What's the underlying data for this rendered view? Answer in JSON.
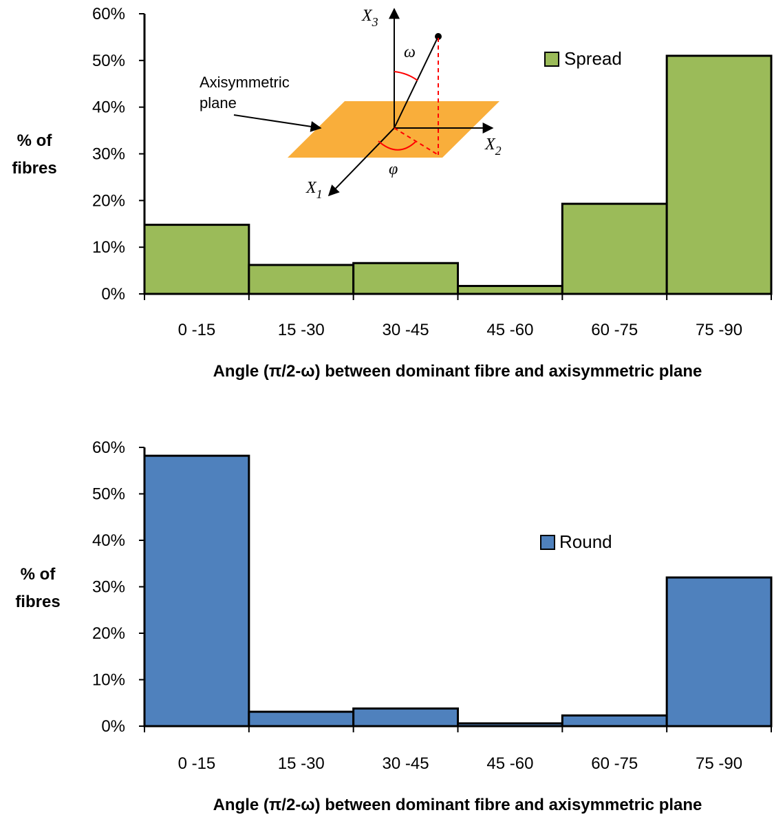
{
  "colors": {
    "spread": "#9bbb59",
    "round": "#4f81bd",
    "plane": "#f9ae3b",
    "angle_marks": "#ff0000"
  },
  "chart_data": [
    {
      "type": "bar",
      "categories": [
        "0 -15",
        "15 -30",
        "30 -45",
        "45 -60",
        "60 -75",
        "75 -90"
      ],
      "series": [
        {
          "name": "Spread",
          "values": [
            14.8,
            6.2,
            6.6,
            1.7,
            19.3,
            51.0
          ]
        }
      ],
      "ylim": [
        0,
        60
      ],
      "yticks": [
        "0%",
        "10%",
        "20%",
        "30%",
        "40%",
        "50%",
        "60%"
      ],
      "ylabel_lines": [
        "% of",
        "fibres"
      ],
      "xlabel": "Angle (π/2-ω) between dominant fibre and axisymmetric plane",
      "legend": "top-right",
      "grid": false,
      "inset_diagram": {
        "labels": {
          "x1": "X",
          "x1_sub": "1",
          "x2": "X",
          "x2_sub": "2",
          "x3": "X",
          "x3_sub": "3",
          "omega": "ω",
          "phi": "φ",
          "plane_line1": "Axisymmetric",
          "plane_line2": "plane"
        }
      }
    },
    {
      "type": "bar",
      "categories": [
        "0 -15",
        "15 -30",
        "30 -45",
        "45 -60",
        "60 -75",
        "75 -90"
      ],
      "series": [
        {
          "name": "Round",
          "values": [
            58.2,
            3.1,
            3.8,
            0.6,
            2.3,
            32.0
          ]
        }
      ],
      "ylim": [
        0,
        60
      ],
      "yticks": [
        "0%",
        "10%",
        "20%",
        "30%",
        "40%",
        "50%",
        "60%"
      ],
      "ylabel_lines": [
        "% of",
        "fibres"
      ],
      "xlabel": "Angle (π/2-ω) between dominant fibre and axisymmetric plane",
      "legend": "center-right",
      "grid": false
    }
  ]
}
